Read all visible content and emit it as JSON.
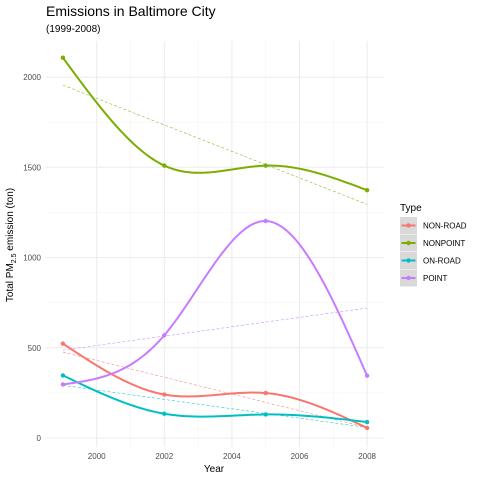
{
  "chart_data": {
    "type": "line",
    "title": "Emissions in Baltimore City",
    "subtitle": "(1999-2008)",
    "xlabel": "Year",
    "ylabel_prefix": "Total PM",
    "ylabel_sub": "2.5",
    "ylabel_suffix": " emission (ton)",
    "x": [
      1999,
      2002,
      2005,
      2008
    ],
    "xlim": [
      1998.5,
      2008.5
    ],
    "ylim": [
      -50,
      2200
    ],
    "x_ticks": [
      2000,
      2002,
      2004,
      2006,
      2008
    ],
    "y_ticks": [
      0,
      500,
      1000,
      1500,
      2000
    ],
    "grid": true,
    "smooth": true,
    "trend_lines": "linear, dashed",
    "legend": {
      "title": "Type",
      "position": "right"
    },
    "series": [
      {
        "name": "NON-ROAD",
        "color": "#F8766D",
        "values": [
          522.9,
          240.8,
          248.9,
          55.8
        ]
      },
      {
        "name": "NONPOINT",
        "color": "#7CAE00",
        "values": [
          2107.6,
          1509.5,
          1509.5,
          1373.2
        ]
      },
      {
        "name": "ON-ROAD",
        "color": "#00BFC4",
        "values": [
          346.8,
          134.3,
          130.4,
          88.3
        ]
      },
      {
        "name": "POINT",
        "color": "#C77CFF",
        "values": [
          296.8,
          569.3,
          1202.5,
          344.98
        ]
      }
    ]
  }
}
